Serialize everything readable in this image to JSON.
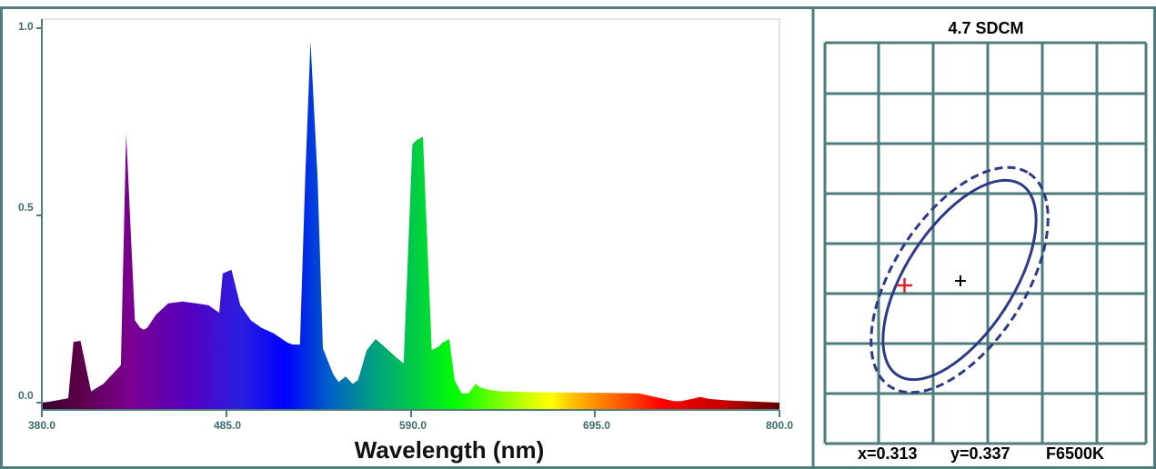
{
  "chart_data": [
    {
      "type": "area",
      "title": "",
      "xlabel": "Wavelength (nm)",
      "ylabel": "",
      "xlim": [
        380,
        800
      ],
      "ylim": [
        0,
        1
      ],
      "x_ticks": [
        "380.0",
        "485.0",
        "590.0",
        "695.0",
        "800.0"
      ],
      "y_ticks": [
        "0.0",
        "0.5",
        "1.0"
      ],
      "fill": "visible-spectrum gradient",
      "series": [
        {
          "x": [
            380,
            385,
            395,
            398,
            402,
            408,
            415,
            420,
            425,
            428,
            433,
            436,
            438,
            440,
            445,
            452,
            460,
            468,
            475,
            481,
            483,
            488,
            493,
            499,
            505,
            512,
            520,
            523,
            527,
            530,
            533,
            537,
            540,
            546,
            549,
            553,
            557,
            560,
            565,
            570,
            575,
            582,
            586,
            591,
            593,
            597,
            602,
            606,
            608,
            612,
            615,
            619,
            623,
            627,
            630,
            634,
            641,
            660,
            680,
            700,
            720,
            740,
            744,
            755,
            760,
            770,
            780,
            800
          ],
          "y": [
            0.0,
            0.003,
            0.012,
            0.162,
            0.165,
            0.03,
            0.05,
            0.075,
            0.1,
            0.72,
            0.22,
            0.2,
            0.195,
            0.2,
            0.235,
            0.265,
            0.27,
            0.265,
            0.26,
            0.24,
            0.345,
            0.355,
            0.26,
            0.22,
            0.2,
            0.185,
            0.16,
            0.155,
            0.155,
            0.6,
            0.965,
            0.6,
            0.145,
            0.075,
            0.055,
            0.07,
            0.05,
            0.06,
            0.14,
            0.17,
            0.15,
            0.12,
            0.105,
            0.69,
            0.7,
            0.71,
            0.14,
            0.15,
            0.16,
            0.17,
            0.06,
            0.025,
            0.025,
            0.05,
            0.04,
            0.035,
            0.03,
            0.028,
            0.027,
            0.026,
            0.025,
            0.004,
            0.004,
            0.015,
            0.01,
            0.006,
            0.004,
            0.0
          ]
        }
      ]
    },
    {
      "type": "scatter",
      "title": "4.7 SDCM",
      "grid": true,
      "points": [
        {
          "name": "reference",
          "x": 0.313,
          "y": 0.337,
          "color": "#000000"
        },
        {
          "name": "measured",
          "color": "#e0202a"
        }
      ],
      "ellipses": [
        {
          "style": "solid",
          "color": "#2d3a88"
        },
        {
          "style": "dashed",
          "color": "#2d3a88"
        }
      ],
      "footer": {
        "x": "x=0.313",
        "y": "y=0.337",
        "source": "F6500K"
      }
    }
  ],
  "colors": {
    "frame": "#4f7d7d",
    "grid": "#4f7d7d",
    "axis_text": "#3d6b6b",
    "ellipse": "#2d3a88"
  }
}
